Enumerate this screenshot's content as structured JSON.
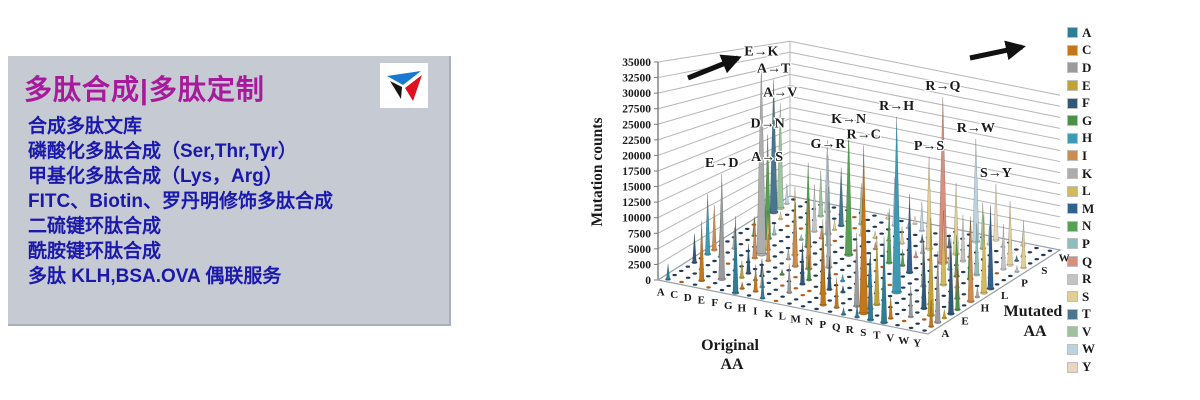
{
  "panel": {
    "title": "多肽合成|多肽定制",
    "services": [
      "合成多肽文库",
      "磷酸化多肽合成（Ser,Thr,Tyr）",
      "甲基化多肽合成（Lys，Arg）",
      "FITC、Biotin、罗丹明修饰多肽合成",
      "二硫键环肽合成",
      "酰胺键环肽合成",
      "多肽 KLH,BSA.OVA 偶联服务"
    ],
    "colors": {
      "background": "#c6cad3",
      "title": "#a81a9c",
      "service_text": "#1b19ad"
    },
    "logo_icon": "triangle-logo",
    "logo_colors": {
      "top": "#1878d2",
      "left": "#141414",
      "right": "#e0101e"
    }
  },
  "chart_data": {
    "type": "bar",
    "subtype": "3d-cone-grid",
    "ylabel": "Mutation counts",
    "xlabel": "Original AA",
    "depth_label": "Mutated AA",
    "ylim": [
      0,
      35000
    ],
    "yticks": [
      0,
      2500,
      5000,
      7500,
      10000,
      12500,
      15000,
      17500,
      20000,
      22500,
      25000,
      27500,
      30000,
      32500,
      35000
    ],
    "grid": true,
    "legend_position": "right",
    "categories_x": [
      "A",
      "C",
      "D",
      "E",
      "F",
      "G",
      "H",
      "I",
      "K",
      "L",
      "M",
      "N",
      "P",
      "Q",
      "R",
      "S",
      "T",
      "V",
      "W",
      "Y"
    ],
    "categories_depth": [
      "A",
      "C",
      "D",
      "E",
      "F",
      "G",
      "H",
      "I",
      "K",
      "L",
      "M",
      "N",
      "P",
      "Q",
      "R",
      "S",
      "T",
      "V",
      "W",
      "Y"
    ],
    "depth_ticks_shown": [
      "A",
      "E",
      "H",
      "L",
      "P",
      "S",
      "W"
    ],
    "series_legend": [
      {
        "label": "A",
        "color": "#2E7D96"
      },
      {
        "label": "C",
        "color": "#C4761B"
      },
      {
        "label": "D",
        "color": "#9B9B9B"
      },
      {
        "label": "E",
        "color": "#C3A233"
      },
      {
        "label": "F",
        "color": "#2F5879"
      },
      {
        "label": "G",
        "color": "#4C9148"
      },
      {
        "label": "H",
        "color": "#3D99B4"
      },
      {
        "label": "I",
        "color": "#CE8B4E"
      },
      {
        "label": "K",
        "color": "#ACACAC"
      },
      {
        "label": "L",
        "color": "#D4B95A"
      },
      {
        "label": "M",
        "color": "#33618E"
      },
      {
        "label": "N",
        "color": "#55A054"
      },
      {
        "label": "P",
        "color": "#8FBFBC"
      },
      {
        "label": "Q",
        "color": "#D98F7E"
      },
      {
        "label": "R",
        "color": "#C3C3C3"
      },
      {
        "label": "S",
        "color": "#E0CE93"
      },
      {
        "label": "T",
        "color": "#49758F"
      },
      {
        "label": "V",
        "color": "#9DC49B"
      },
      {
        "label": "W",
        "color": "#BCD2DE"
      },
      {
        "label": "Y",
        "color": "#E8D7BE"
      }
    ],
    "labeled_peaks": [
      {
        "label": "E→K",
        "original": "E",
        "mutated": "K",
        "value": 35000
      },
      {
        "label": "A→T",
        "original": "A",
        "mutated": "T",
        "value": 28000
      },
      {
        "label": "R→Q",
        "original": "R",
        "mutated": "Q",
        "value": 33000
      },
      {
        "label": "A→V",
        "original": "A",
        "mutated": "V",
        "value": 22500
      },
      {
        "label": "R→H",
        "original": "R",
        "mutated": "H",
        "value": 31000
      },
      {
        "label": "K→N",
        "original": "K",
        "mutated": "N",
        "value": 24000
      },
      {
        "label": "D→N",
        "original": "D",
        "mutated": "N",
        "value": 20000
      },
      {
        "label": "R→W",
        "original": "R",
        "mutated": "W",
        "value": 22500
      },
      {
        "label": "R→C",
        "original": "R",
        "mutated": "C",
        "value": 27500
      },
      {
        "label": "G→R",
        "original": "G",
        "mutated": "R",
        "value": 16000
      },
      {
        "label": "P→S",
        "original": "P",
        "mutated": "S",
        "value": 19000
      },
      {
        "label": "A→S",
        "original": "A",
        "mutated": "S",
        "value": 10000
      },
      {
        "label": "E→D",
        "original": "E",
        "mutated": "D",
        "value": 17500
      },
      {
        "label": "S→Y",
        "original": "S",
        "mutated": "Y",
        "value": 12500
      }
    ]
  }
}
